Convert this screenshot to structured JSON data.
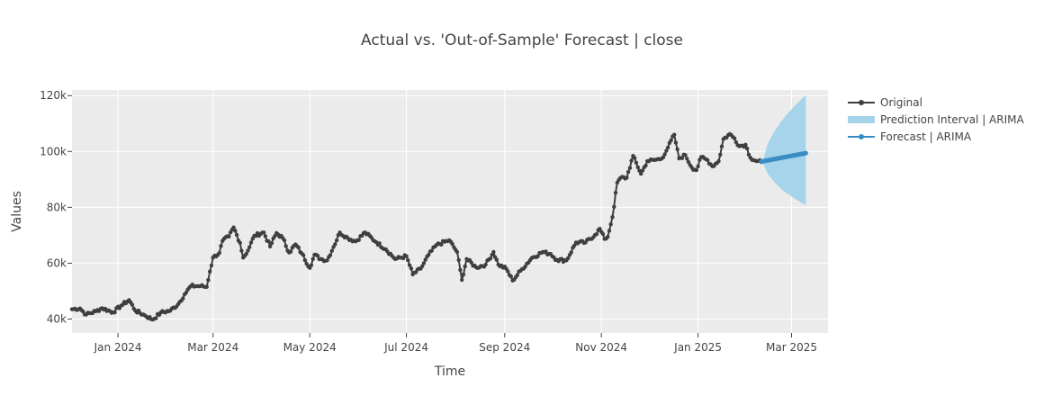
{
  "chart_data": {
    "type": "line",
    "title": "Actual vs. 'Out-of-Sample' Forecast | close",
    "xlabel": "Time",
    "ylabel": "Values",
    "x_range": [
      "2023-12-03",
      "2025-03-24"
    ],
    "ylim": [
      35000,
      122000
    ],
    "x_ticks": [
      {
        "date": "2024-01-01",
        "label": "Jan 2024"
      },
      {
        "date": "2024-03-01",
        "label": "Mar 2024"
      },
      {
        "date": "2024-05-01",
        "label": "May 2024"
      },
      {
        "date": "2024-07-01",
        "label": "Jul 2024"
      },
      {
        "date": "2024-09-01",
        "label": "Sep 2024"
      },
      {
        "date": "2024-11-01",
        "label": "Nov 2024"
      },
      {
        "date": "2025-01-01",
        "label": "Jan 2025"
      },
      {
        "date": "2025-03-01",
        "label": "Mar 2025"
      }
    ],
    "y_ticks": [
      {
        "value": 40000,
        "label": "40k"
      },
      {
        "value": 60000,
        "label": "60k"
      },
      {
        "value": 80000,
        "label": "80k"
      },
      {
        "value": 100000,
        "label": "100k"
      },
      {
        "value": 120000,
        "label": "120k"
      }
    ],
    "grid": true,
    "legend": "right",
    "plot_bgcolor": "#ebebeb",
    "series": [
      {
        "name": "Original",
        "kind": "line+markers",
        "color": "#3f3f3f",
        "x_start": "2023-12-03",
        "step_days": 1,
        "anchors": [
          [
            "2023-12-03",
            43500
          ],
          [
            "2023-12-08",
            43800
          ],
          [
            "2023-12-12",
            41600
          ],
          [
            "2023-12-18",
            42800
          ],
          [
            "2023-12-22",
            43900
          ],
          [
            "2023-12-29",
            42400
          ],
          [
            "2024-01-03",
            44800
          ],
          [
            "2024-01-08",
            46800
          ],
          [
            "2024-01-12",
            43000
          ],
          [
            "2024-01-18",
            41300
          ],
          [
            "2024-01-23",
            39800
          ],
          [
            "2024-01-28",
            42300
          ],
          [
            "2024-02-03",
            43000
          ],
          [
            "2024-02-08",
            45300
          ],
          [
            "2024-02-12",
            48800
          ],
          [
            "2024-02-16",
            51800
          ],
          [
            "2024-02-22",
            51800
          ],
          [
            "2024-02-26",
            51500
          ],
          [
            "2024-02-28",
            57000
          ],
          [
            "2024-03-01",
            62000
          ],
          [
            "2024-03-05",
            63700
          ],
          [
            "2024-03-07",
            68000
          ],
          [
            "2024-03-11",
            69500
          ],
          [
            "2024-03-14",
            72800
          ],
          [
            "2024-03-18",
            67300
          ],
          [
            "2024-03-20",
            62000
          ],
          [
            "2024-03-23",
            64500
          ],
          [
            "2024-03-27",
            69800
          ],
          [
            "2024-04-02",
            71000
          ],
          [
            "2024-04-06",
            66000
          ],
          [
            "2024-04-10",
            70800
          ],
          [
            "2024-04-14",
            69000
          ],
          [
            "2024-04-18",
            63800
          ],
          [
            "2024-04-22",
            66700
          ],
          [
            "2024-04-26",
            63500
          ],
          [
            "2024-05-01",
            58300
          ],
          [
            "2024-05-04",
            63000
          ],
          [
            "2024-05-08",
            61500
          ],
          [
            "2024-05-12",
            61000
          ],
          [
            "2024-05-16",
            65800
          ],
          [
            "2024-05-20",
            71000
          ],
          [
            "2024-05-25",
            69000
          ],
          [
            "2024-05-30",
            67800
          ],
          [
            "2024-06-05",
            71000
          ],
          [
            "2024-06-12",
            67500
          ],
          [
            "2024-06-18",
            65000
          ],
          [
            "2024-06-24",
            61500
          ],
          [
            "2024-07-01",
            62500
          ],
          [
            "2024-07-05",
            56000
          ],
          [
            "2024-07-10",
            58000
          ],
          [
            "2024-07-15",
            63000
          ],
          [
            "2024-07-20",
            66500
          ],
          [
            "2024-07-28",
            68200
          ],
          [
            "2024-08-02",
            64000
          ],
          [
            "2024-08-05",
            54000
          ],
          [
            "2024-08-08",
            61500
          ],
          [
            "2024-08-14",
            58500
          ],
          [
            "2024-08-20",
            59500
          ],
          [
            "2024-08-25",
            64000
          ],
          [
            "2024-08-28",
            59500
          ],
          [
            "2024-09-02",
            58000
          ],
          [
            "2024-09-06",
            53800
          ],
          [
            "2024-09-12",
            57900
          ],
          [
            "2024-09-18",
            61800
          ],
          [
            "2024-09-25",
            64000
          ],
          [
            "2024-09-30",
            63300
          ],
          [
            "2024-10-04",
            61200
          ],
          [
            "2024-10-10",
            61000
          ],
          [
            "2024-10-16",
            67400
          ],
          [
            "2024-10-22",
            67400
          ],
          [
            "2024-10-28",
            70100
          ],
          [
            "2024-10-31",
            72300
          ],
          [
            "2024-11-03",
            68700
          ],
          [
            "2024-11-05",
            69400
          ],
          [
            "2024-11-08",
            76500
          ],
          [
            "2024-11-11",
            88800
          ],
          [
            "2024-11-13",
            90500
          ],
          [
            "2024-11-17",
            90600
          ],
          [
            "2024-11-21",
            98400
          ],
          [
            "2024-11-26",
            92000
          ],
          [
            "2024-11-30",
            96500
          ],
          [
            "2024-12-05",
            97000
          ],
          [
            "2024-12-09",
            97400
          ],
          [
            "2024-12-13",
            101400
          ],
          [
            "2024-12-17",
            106000
          ],
          [
            "2024-12-20",
            97500
          ],
          [
            "2024-12-24",
            98700
          ],
          [
            "2024-12-28",
            94300
          ],
          [
            "2024-12-31",
            93300
          ],
          [
            "2025-01-03",
            98000
          ],
          [
            "2025-01-07",
            96900
          ],
          [
            "2025-01-10",
            94700
          ],
          [
            "2025-01-14",
            96500
          ],
          [
            "2025-01-17",
            104400
          ],
          [
            "2025-01-21",
            106200
          ],
          [
            "2025-01-24",
            104700
          ],
          [
            "2025-01-27",
            101900
          ],
          [
            "2025-01-31",
            102400
          ],
          [
            "2025-02-03",
            97800
          ],
          [
            "2025-02-07",
            96500
          ],
          [
            "2025-02-10",
            96200
          ]
        ]
      },
      {
        "name": "Prediction Interval | ARIMA",
        "kind": "band",
        "color": "#a6d4ea",
        "x": [
          "2025-02-11",
          "2025-02-14",
          "2025-02-18",
          "2025-02-22",
          "2025-02-26",
          "2025-03-02",
          "2025-03-06",
          "2025-03-10"
        ],
        "lower": [
          95800,
          92000,
          89200,
          86800,
          85000,
          83500,
          82000,
          80800
        ],
        "upper": [
          96700,
          102800,
          107000,
          110400,
          113200,
          115700,
          118000,
          120300
        ]
      },
      {
        "name": "Forecast | ARIMA",
        "kind": "line+markers",
        "color": "#3a8dc4",
        "x": [
          "2025-02-10",
          "2025-03-10"
        ],
        "values": [
          96400,
          99400
        ],
        "points": 29
      }
    ]
  }
}
